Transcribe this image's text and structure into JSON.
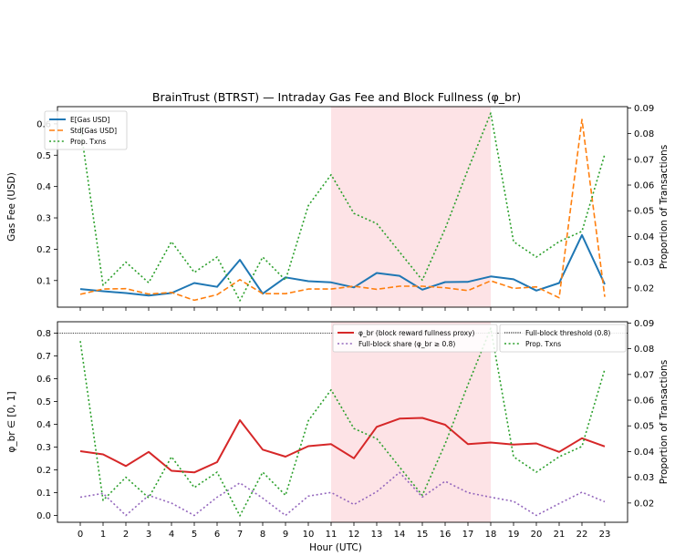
{
  "chart_data": {
    "title": "BrainTrust (BTRST) — Intraday Gas Fee and Block Fullness (φ_br)",
    "type": "line",
    "x": [
      0,
      1,
      2,
      3,
      4,
      5,
      6,
      7,
      8,
      9,
      10,
      11,
      12,
      13,
      14,
      15,
      16,
      17,
      18,
      19,
      20,
      21,
      22,
      23
    ],
    "xlabel": "Hour (UTC)",
    "shaded_span_x": [
      11,
      18
    ],
    "colors": {
      "blue": "#1f77b4",
      "orange": "#ff7f0e",
      "green": "#2ca02c",
      "red": "#d62728",
      "purple": "#9467bd",
      "shade": "#fde3e6"
    },
    "panels": [
      {
        "ylabel": "Gas Fee (USD)",
        "ylim": [
          0.015,
          0.655
        ],
        "yticks": [
          "0.1",
          "0.2",
          "0.3",
          "0.4",
          "0.5",
          "0.6"
        ],
        "ytick_values": [
          0.1,
          0.2,
          0.3,
          0.4,
          0.5,
          0.6
        ],
        "y2label": "Proportion of Transactions",
        "y2lim": [
          0.0125,
          0.0905
        ],
        "y2ticks": [
          "0.02",
          "0.03",
          "0.04",
          "0.05",
          "0.06",
          "0.07",
          "0.08",
          "0.09"
        ],
        "y2tick_values": [
          0.02,
          0.03,
          0.04,
          0.05,
          0.06,
          0.07,
          0.08,
          0.09
        ],
        "legend": [
          {
            "label": "E[Gas USD]",
            "color": "blue",
            "style": "solid"
          },
          {
            "label": "Std[Gas USD]",
            "color": "orange",
            "style": "dashed"
          },
          {
            "label": "Prop. Txns",
            "color": "green",
            "style": "dotted"
          }
        ],
        "series": [
          {
            "name": "E[Gas USD]",
            "axis": "left",
            "color": "blue",
            "style": "solid",
            "values": [
              0.073,
              0.066,
              0.06,
              0.052,
              0.06,
              0.092,
              0.08,
              0.166,
              0.058,
              0.11,
              0.098,
              0.094,
              0.078,
              0.124,
              0.115,
              0.071,
              0.095,
              0.096,
              0.113,
              0.104,
              0.068,
              0.092,
              0.245,
              0.088
            ]
          },
          {
            "name": "Std[Gas USD]",
            "axis": "left",
            "color": "orange",
            "style": "dashed",
            "values": [
              0.056,
              0.073,
              0.074,
              0.057,
              0.062,
              0.037,
              0.055,
              0.103,
              0.058,
              0.058,
              0.073,
              0.073,
              0.082,
              0.072,
              0.082,
              0.082,
              0.077,
              0.068,
              0.099,
              0.075,
              0.08,
              0.045,
              0.614,
              0.048
            ]
          },
          {
            "name": "Prop. Txns",
            "axis": "right",
            "color": "green",
            "style": "dotted",
            "values": [
              0.083,
              0.021,
              0.03,
              0.022,
              0.038,
              0.026,
              0.032,
              0.015,
              0.032,
              0.023,
              0.052,
              0.064,
              0.049,
              0.045,
              0.034,
              0.023,
              0.043,
              0.066,
              0.088,
              0.038,
              0.032,
              0.038,
              0.042,
              0.072
            ]
          }
        ]
      },
      {
        "ylabel": "φ_br  ∈ [0, 1]",
        "ylim": [
          -0.03,
          0.85
        ],
        "yticks": [
          "0.0",
          "0.1",
          "0.2",
          "0.3",
          "0.4",
          "0.5",
          "0.6",
          "0.7",
          "0.8"
        ],
        "ytick_values": [
          0,
          0.1,
          0.2,
          0.3,
          0.4,
          0.5,
          0.6,
          0.7,
          0.8
        ],
        "y2label": "Proportion of Transactions",
        "y2lim": [
          0.0125,
          0.0905
        ],
        "y2ticks": [
          "0.02",
          "0.03",
          "0.04",
          "0.05",
          "0.06",
          "0.07",
          "0.08",
          "0.09"
        ],
        "y2tick_values": [
          0.02,
          0.03,
          0.04,
          0.05,
          0.06,
          0.07,
          0.08,
          0.09
        ],
        "threshold": 0.8,
        "legend_left": [
          {
            "label": "φ_br  (block reward fullness proxy)",
            "color": "red",
            "style": "solid"
          },
          {
            "label": "Full-block share (φ_br ≥ 0.8)",
            "color": "purple",
            "style": "dotted"
          }
        ],
        "legend_right": [
          {
            "label": "Full-block threshold (0.8)",
            "color": "black",
            "style": "dotted_thin"
          },
          {
            "label": "Prop. Txns",
            "color": "green",
            "style": "dotted"
          }
        ],
        "series": [
          {
            "name": "φ_br  (block reward fullness proxy)",
            "axis": "left",
            "color": "red",
            "style": "solid",
            "values": [
              0.282,
              0.268,
              0.217,
              0.279,
              0.196,
              0.189,
              0.234,
              0.418,
              0.289,
              0.258,
              0.304,
              0.313,
              0.251,
              0.389,
              0.425,
              0.428,
              0.398,
              0.313,
              0.32,
              0.311,
              0.316,
              0.279,
              0.339,
              0.303
            ]
          },
          {
            "name": "Full-block share (φ_br ≥ 0.8)",
            "axis": "left",
            "color": "purple",
            "style": "dotted",
            "values": [
              0.08,
              0.097,
              0.0,
              0.088,
              0.054,
              0.0,
              0.08,
              0.143,
              0.076,
              0.0,
              0.085,
              0.101,
              0.048,
              0.104,
              0.189,
              0.081,
              0.15,
              0.1,
              0.08,
              0.062,
              0.0,
              0.052,
              0.102,
              0.06
            ]
          },
          {
            "name": "Prop. Txns",
            "axis": "right",
            "color": "green",
            "style": "dotted",
            "values": [
              0.083,
              0.021,
              0.03,
              0.022,
              0.038,
              0.026,
              0.032,
              0.015,
              0.032,
              0.023,
              0.052,
              0.064,
              0.049,
              0.045,
              0.034,
              0.023,
              0.043,
              0.066,
              0.088,
              0.038,
              0.032,
              0.038,
              0.042,
              0.072
            ]
          }
        ]
      }
    ]
  }
}
